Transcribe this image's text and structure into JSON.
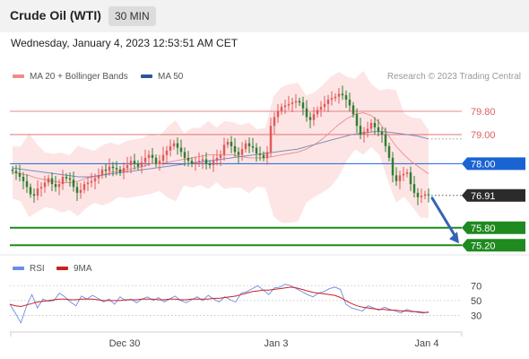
{
  "header": {
    "instrument": "Crude Oil (WTI)",
    "interval": "30 MIN"
  },
  "datetime": "Wednesday, January 4, 2023 12:53:51 AM CET",
  "legend": {
    "ma20": "MA 20 + Bollinger Bands",
    "ma50": "MA 50",
    "credit": "Research © 2023 Trading Central"
  },
  "rsi_legend": {
    "rsi": "RSI",
    "ma9": "9MA"
  },
  "colors": {
    "bull": "#e05a5a",
    "bear": "#2f7d32",
    "ma50": "#7a8fc0",
    "ma20": "#f08a8a",
    "band_fill": "#fde2e2",
    "pivot": "#1a63d4",
    "resistance": "#e06060",
    "support": "#1f8a1f",
    "price_box": "#2b2b2b",
    "arrow": "#3363b5",
    "rsi": "#6b8de3",
    "rsi_ma": "#cc2020"
  },
  "chart_data": [
    {
      "type": "candlestick",
      "title": "Crude Oil (WTI)",
      "x_ticks": [
        "Dec 30",
        "Jan 3",
        "Jan 4"
      ],
      "ylim": [
        74.9,
        80.6
      ],
      "levels": {
        "resistance": [
          79.8,
          79.0
        ],
        "pivot": 78.0,
        "last": 76.91,
        "support": [
          75.8,
          75.2
        ]
      },
      "level_labels": [
        "79.80",
        "79.00",
        "78.00",
        "76.91",
        "75.80",
        "75.20"
      ],
      "close": [
        77.75,
        77.68,
        77.55,
        77.4,
        77.2,
        76.95,
        76.9,
        77.15,
        77.2,
        77.35,
        77.5,
        77.3,
        77.2,
        77.3,
        77.55,
        77.5,
        77.45,
        77.2,
        77.0,
        77.1,
        77.3,
        77.35,
        77.4,
        77.5,
        77.6,
        77.8,
        77.75,
        77.9,
        77.85,
        77.8,
        77.7,
        77.85,
        77.95,
        78.1,
        78.0,
        77.9,
        78.05,
        78.2,
        78.3,
        78.2,
        78.0,
        78.1,
        78.3,
        78.45,
        78.6,
        78.7,
        78.55,
        78.4,
        78.2,
        78.1,
        78.0,
        78.05,
        78.1,
        78.15,
        78.0,
        77.95,
        78.1,
        78.2,
        78.3,
        78.65,
        78.75,
        78.6,
        78.4,
        78.3,
        78.5,
        78.7,
        78.6,
        78.55,
        78.35,
        78.3,
        78.2,
        78.4,
        79.3,
        79.6,
        79.8,
        79.95,
        80.0,
        80.05,
        80.1,
        80.15,
        80.1,
        79.9,
        79.6,
        79.5,
        79.7,
        79.85,
        79.95,
        80.05,
        80.2,
        80.25,
        80.3,
        80.4,
        80.35,
        80.2,
        80.0,
        79.7,
        79.3,
        79.0,
        79.1,
        79.2,
        79.4,
        79.25,
        79.1,
        79.0,
        78.6,
        78.2,
        77.6,
        77.4,
        77.6,
        77.65,
        77.7,
        77.3,
        77.0,
        76.85,
        76.9,
        76.95,
        76.91
      ],
      "ma20": [
        77.7,
        77.65,
        77.6,
        77.5,
        77.45,
        77.4,
        77.35,
        77.35,
        77.4,
        77.5,
        77.55,
        77.6,
        77.7,
        77.75,
        77.8,
        77.85,
        77.9,
        78.0,
        78.0,
        78.05,
        78.1,
        78.15,
        78.2,
        78.25,
        78.3,
        78.3,
        78.3,
        78.3,
        78.25,
        78.2,
        78.2,
        78.2,
        78.25,
        78.3,
        78.35,
        78.4,
        78.5,
        78.65,
        78.85,
        79.1,
        79.35,
        79.55,
        79.7,
        79.75,
        79.65,
        79.4,
        79.0,
        78.6,
        78.3,
        78.05,
        77.85,
        77.65
      ],
      "ma50": [
        77.85,
        77.8,
        77.75,
        77.7,
        77.65,
        77.6,
        77.55,
        77.55,
        77.6,
        77.65,
        77.7,
        77.75,
        77.8,
        77.85,
        77.9,
        77.95,
        78.0,
        78.05,
        78.1,
        78.15,
        78.2,
        78.25,
        78.3,
        78.35,
        78.4,
        78.45,
        78.5,
        78.6,
        78.7,
        78.8,
        78.9,
        79.0,
        79.05,
        79.1,
        79.1,
        79.05,
        79.0,
        78.95,
        78.85
      ],
      "rsi_ticks": [
        "70",
        "50",
        "30"
      ],
      "rsi": [
        45,
        33,
        20,
        42,
        58,
        40,
        52,
        49,
        50,
        60,
        55,
        48,
        43,
        56,
        52,
        57,
        53,
        48,
        52,
        45,
        55,
        50,
        52,
        47,
        52,
        55,
        50,
        54,
        48,
        52,
        56,
        50,
        47,
        51,
        55,
        50,
        57,
        52,
        48,
        55,
        51,
        48,
        60,
        62,
        66,
        70,
        64,
        58,
        67,
        68,
        72,
        70,
        66,
        62,
        58,
        55,
        60,
        62,
        66,
        68,
        65,
        45,
        40,
        38,
        36,
        43,
        40,
        37,
        41,
        38,
        36,
        33,
        38,
        36,
        34,
        33,
        35
      ],
      "rsi_ma": [
        45,
        43,
        42,
        44,
        46,
        48,
        49,
        50,
        51,
        52,
        52,
        51,
        51,
        52,
        52,
        52,
        51,
        50,
        50,
        50,
        50,
        51,
        51,
        51,
        52,
        52,
        52,
        51,
        51,
        52,
        52,
        51,
        51,
        52,
        52,
        52,
        52,
        53,
        53,
        54,
        55,
        56,
        58,
        60,
        62,
        63,
        64,
        64,
        65,
        66,
        67,
        68,
        67,
        65,
        63,
        61,
        60,
        59,
        58,
        57,
        54,
        50,
        46,
        43,
        41,
        40,
        39,
        38,
        38,
        37,
        37,
        36,
        36,
        35,
        35,
        34,
        34
      ]
    }
  ]
}
